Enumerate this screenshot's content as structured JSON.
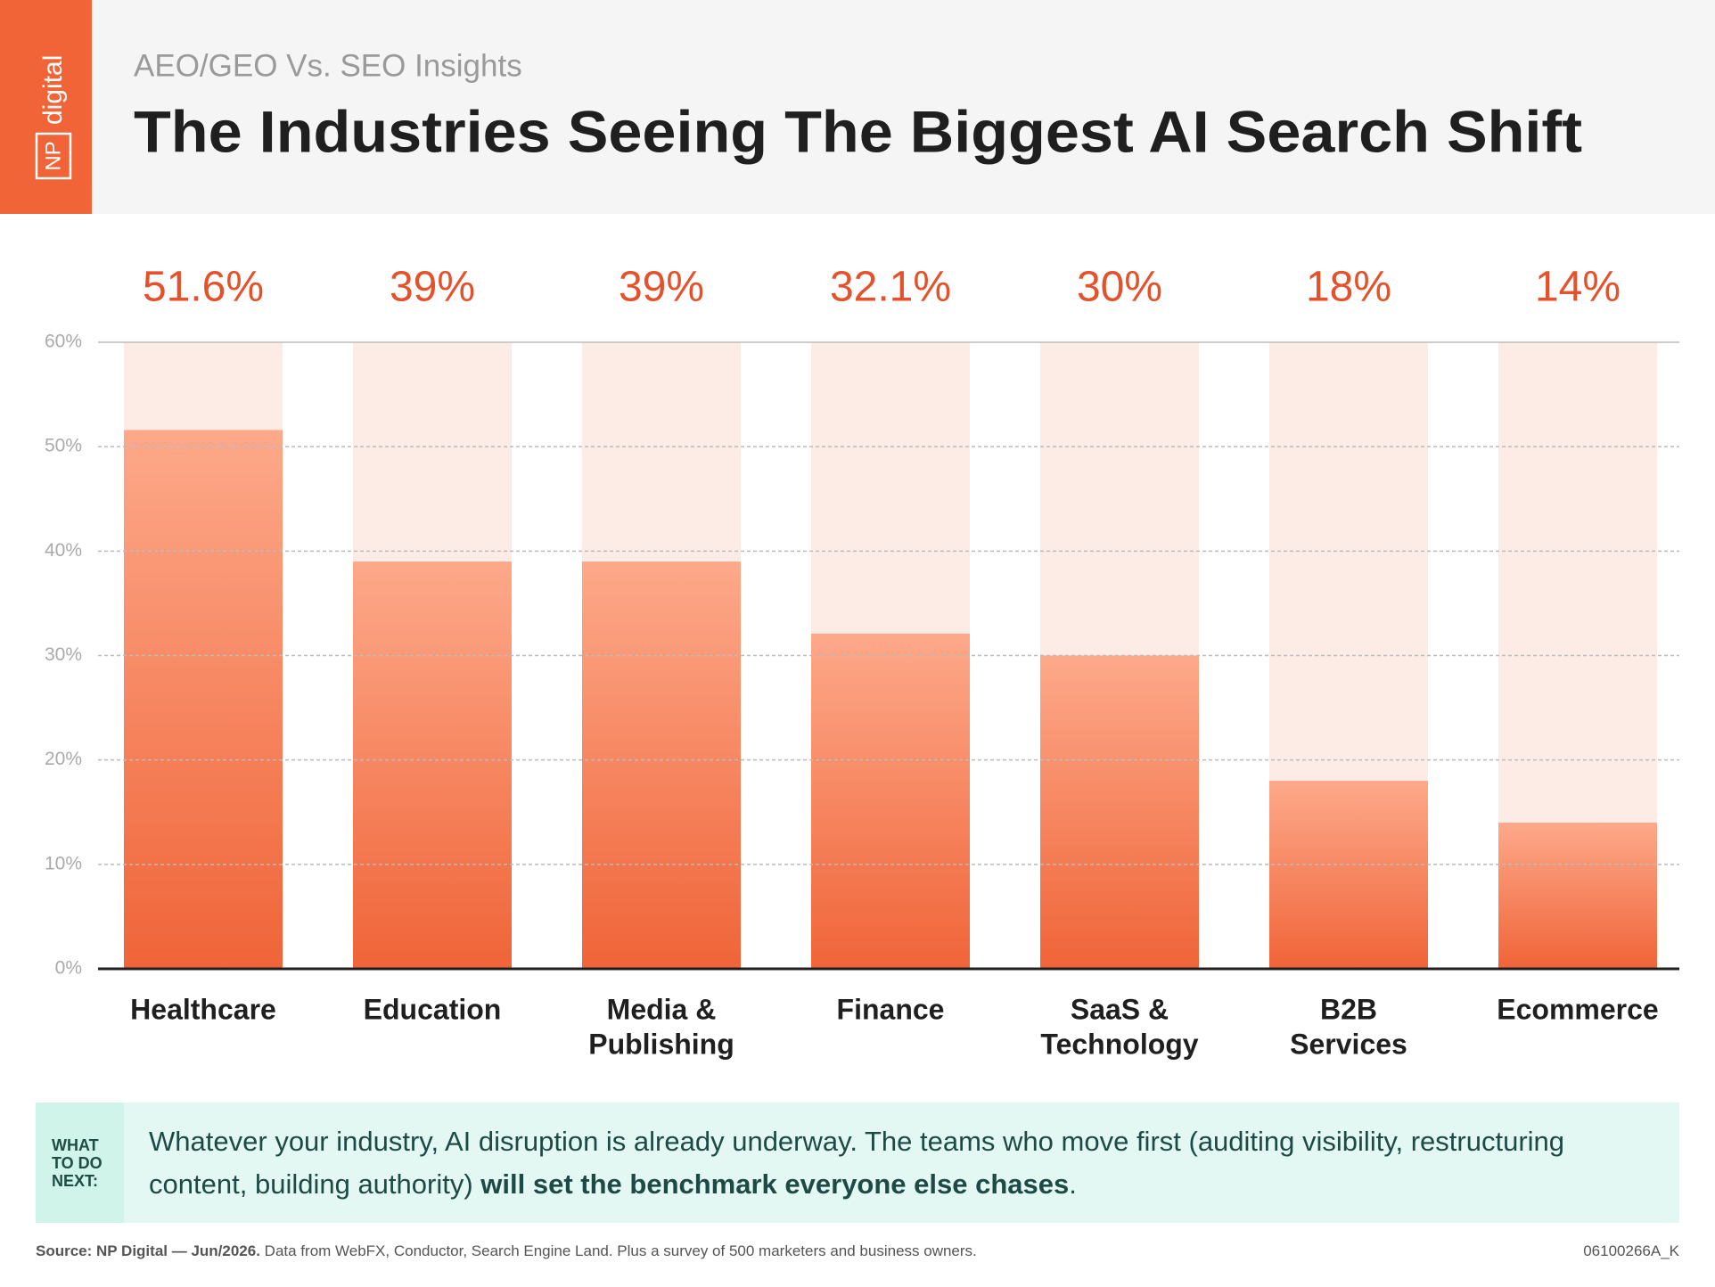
{
  "logo": {
    "mark": "NP",
    "word": "digital"
  },
  "header": {
    "subtitle": "AEO/GEO Vs. SEO Insights",
    "title": "The Industries Seeing The Biggest AI Search Shift"
  },
  "chart_data": {
    "type": "bar",
    "categories": [
      [
        "Healthcare"
      ],
      [
        "Education"
      ],
      [
        "Media &",
        "Publishing"
      ],
      [
        "Finance"
      ],
      [
        "SaaS &",
        "Technology"
      ],
      [
        "B2B",
        "Services"
      ],
      [
        "Ecommerce"
      ]
    ],
    "values": [
      51.6,
      39,
      39,
      32.1,
      30,
      18,
      14
    ],
    "value_labels": [
      "51.6%",
      "39%",
      "39%",
      "32.1%",
      "30%",
      "18%",
      "14%"
    ],
    "color": "#f06438",
    "track_color": "#fdece6",
    "label_color": "#e4512a",
    "ylim": [
      0,
      60
    ],
    "yticks": [
      {
        "value": 0,
        "label": "0%"
      },
      {
        "value": 10,
        "label": "10%"
      },
      {
        "value": 20,
        "label": "20%"
      },
      {
        "value": 30,
        "label": "30%"
      },
      {
        "value": 40,
        "label": "40%"
      },
      {
        "value": 50,
        "label": "50%"
      },
      {
        "value": 60,
        "label": "60%"
      }
    ],
    "grid": true
  },
  "callout": {
    "label": "WHAT TO DO NEXT:",
    "text": "Whatever your industry, AI disruption is already underway. The teams who move first (auditing visibility, restructuring content, building authority)",
    "emphasis": "will set the benchmark everyone else chases",
    "end": "."
  },
  "footer": {
    "source": "Source: NP Digital — Jun/2026.",
    "note": "Data from WebFX, Conductor, Search Engine Land. Plus a survey of 500 marketers and business owners.",
    "code": "06100266A_K"
  }
}
